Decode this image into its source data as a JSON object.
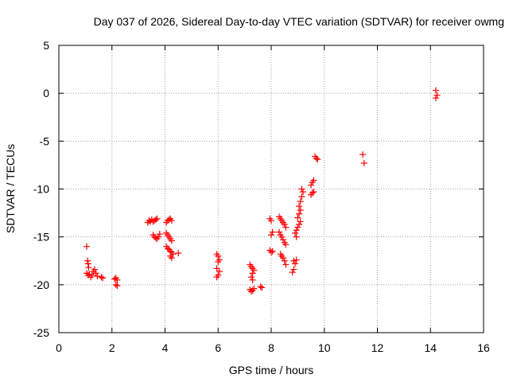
{
  "chart_data": {
    "type": "scatter",
    "title": "Day 037 of 2026, Sidereal Day-to-day VTEC variation (SDTVAR) for receiver owmg",
    "xlabel": "GPS time / hours",
    "ylabel": "SDTVAR / TECUs",
    "xlim": [
      0,
      16
    ],
    "ylim": [
      -25,
      5
    ],
    "xticks": [
      0,
      2,
      4,
      6,
      8,
      10,
      12,
      14,
      16
    ],
    "yticks": [
      5,
      0,
      -5,
      -10,
      -15,
      -20,
      -25
    ],
    "grid": true,
    "marker": "+",
    "color": "#ff0000",
    "series": [
      {
        "name": "SDTVAR",
        "points": [
          [
            1.05,
            -16.0
          ],
          [
            1.08,
            -17.5
          ],
          [
            1.1,
            -17.8
          ],
          [
            1.12,
            -18.2
          ],
          [
            1.05,
            -18.8
          ],
          [
            1.1,
            -19.0
          ],
          [
            1.15,
            -18.9
          ],
          [
            1.2,
            -19.2
          ],
          [
            1.25,
            -19.0
          ],
          [
            1.3,
            -18.6
          ],
          [
            1.35,
            -18.4
          ],
          [
            1.4,
            -18.8
          ],
          [
            1.45,
            -19.1
          ],
          [
            1.6,
            -19.2
          ],
          [
            1.65,
            -19.3
          ],
          [
            2.1,
            -19.4
          ],
          [
            2.15,
            -19.3
          ],
          [
            2.2,
            -19.5
          ],
          [
            2.15,
            -20.0
          ],
          [
            2.2,
            -20.1
          ],
          [
            3.35,
            -13.5
          ],
          [
            3.4,
            -13.3
          ],
          [
            3.45,
            -13.4
          ],
          [
            3.5,
            -13.2
          ],
          [
            3.55,
            -13.4
          ],
          [
            3.6,
            -13.3
          ],
          [
            3.65,
            -13.2
          ],
          [
            3.7,
            -13.1
          ],
          [
            3.55,
            -14.8
          ],
          [
            3.6,
            -15.0
          ],
          [
            3.65,
            -15.1
          ],
          [
            3.7,
            -15.2
          ],
          [
            3.75,
            -15.0
          ],
          [
            3.8,
            -14.7
          ],
          [
            4.05,
            -13.5
          ],
          [
            4.1,
            -13.3
          ],
          [
            4.15,
            -13.2
          ],
          [
            4.2,
            -13.1
          ],
          [
            4.25,
            -13.3
          ],
          [
            4.05,
            -14.6
          ],
          [
            4.1,
            -14.8
          ],
          [
            4.15,
            -15.0
          ],
          [
            4.2,
            -15.2
          ],
          [
            4.25,
            -15.4
          ],
          [
            4.05,
            -16.0
          ],
          [
            4.1,
            -16.2
          ],
          [
            4.15,
            -16.3
          ],
          [
            4.2,
            -16.5
          ],
          [
            4.25,
            -16.6
          ],
          [
            4.3,
            -16.8
          ],
          [
            4.2,
            -17.0
          ],
          [
            4.25,
            -17.2
          ],
          [
            4.5,
            -16.7
          ],
          [
            5.95,
            -16.8
          ],
          [
            6.0,
            -17.0
          ],
          [
            6.05,
            -17.4
          ],
          [
            6.0,
            -17.6
          ],
          [
            5.95,
            -18.3
          ],
          [
            6.05,
            -18.6
          ],
          [
            6.0,
            -19.0
          ],
          [
            5.95,
            -19.2
          ],
          [
            7.2,
            -17.9
          ],
          [
            7.25,
            -18.1
          ],
          [
            7.3,
            -18.3
          ],
          [
            7.35,
            -18.5
          ],
          [
            7.3,
            -18.8
          ],
          [
            7.25,
            -19.2
          ],
          [
            7.3,
            -19.5
          ],
          [
            7.2,
            -20.5
          ],
          [
            7.25,
            -20.7
          ],
          [
            7.3,
            -20.6
          ],
          [
            7.35,
            -20.4
          ],
          [
            7.6,
            -20.2
          ],
          [
            7.65,
            -20.3
          ],
          [
            7.95,
            -13.1
          ],
          [
            8.0,
            -13.3
          ],
          [
            8.05,
            -14.5
          ],
          [
            8.0,
            -14.8
          ],
          [
            7.95,
            -16.4
          ],
          [
            8.0,
            -16.6
          ],
          [
            8.05,
            -16.5
          ],
          [
            8.3,
            -12.9
          ],
          [
            8.35,
            -13.1
          ],
          [
            8.4,
            -13.3
          ],
          [
            8.45,
            -13.5
          ],
          [
            8.5,
            -13.7
          ],
          [
            8.55,
            -14.0
          ],
          [
            8.3,
            -14.5
          ],
          [
            8.35,
            -14.8
          ],
          [
            8.4,
            -15.0
          ],
          [
            8.45,
            -15.3
          ],
          [
            8.5,
            -15.6
          ],
          [
            8.55,
            -15.8
          ],
          [
            8.35,
            -16.8
          ],
          [
            8.4,
            -17.0
          ],
          [
            8.45,
            -17.2
          ],
          [
            8.5,
            -17.5
          ],
          [
            8.55,
            -17.9
          ],
          [
            8.85,
            -17.5
          ],
          [
            8.9,
            -17.8
          ],
          [
            8.85,
            -18.4
          ],
          [
            8.8,
            -18.7
          ],
          [
            8.95,
            -17.4
          ],
          [
            8.9,
            -14.6
          ],
          [
            8.95,
            -14.3
          ],
          [
            9.0,
            -14.0
          ],
          [
            9.05,
            -13.7
          ],
          [
            9.1,
            -13.4
          ],
          [
            9.0,
            -13.0
          ],
          [
            9.05,
            -12.6
          ],
          [
            9.1,
            -12.2
          ],
          [
            9.05,
            -11.8
          ],
          [
            9.1,
            -11.3
          ],
          [
            9.15,
            -10.8
          ],
          [
            9.2,
            -10.3
          ],
          [
            9.15,
            -10.0
          ],
          [
            8.95,
            -15.0
          ],
          [
            9.5,
            -10.6
          ],
          [
            9.55,
            -10.4
          ],
          [
            9.6,
            -10.3
          ],
          [
            9.5,
            -9.6
          ],
          [
            9.55,
            -9.3
          ],
          [
            9.6,
            -9.1
          ],
          [
            9.65,
            -6.6
          ],
          [
            9.7,
            -6.8
          ],
          [
            9.75,
            -6.9
          ],
          [
            11.45,
            -6.4
          ],
          [
            11.5,
            -7.3
          ],
          [
            14.2,
            0.3
          ],
          [
            14.25,
            -0.2
          ],
          [
            14.2,
            -0.5
          ]
        ]
      }
    ]
  }
}
